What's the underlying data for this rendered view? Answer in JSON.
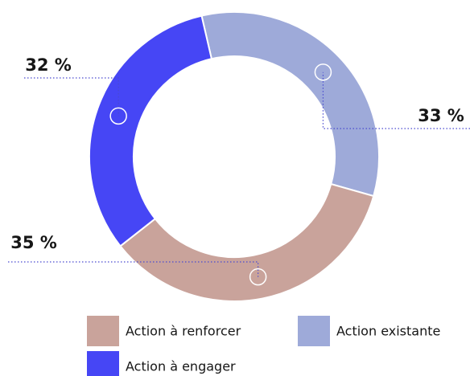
{
  "chart_data": {
    "type": "donut",
    "categories": [
      "Action existante",
      "Action à renforcer",
      "Action à engager"
    ],
    "values": [
      33,
      35,
      32
    ],
    "value_labels": [
      "33 %",
      "35 %",
      "32 %"
    ],
    "colors": [
      "#9eaad9",
      "#c9a39b",
      "#4646f5"
    ]
  }
}
